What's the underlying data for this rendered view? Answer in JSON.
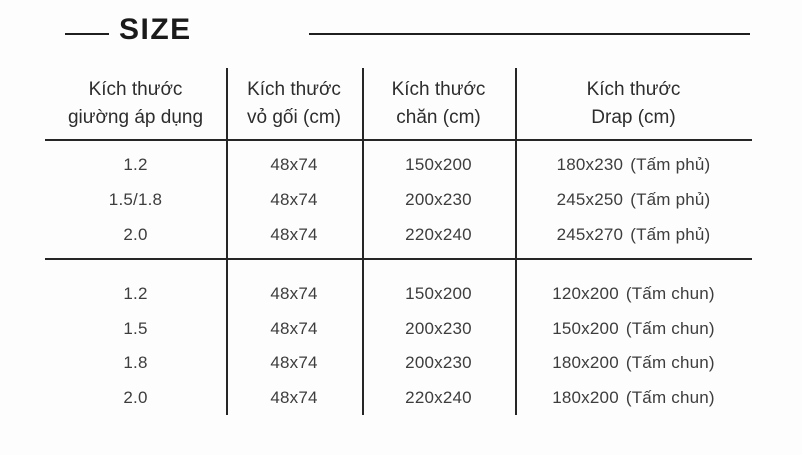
{
  "page": {
    "title": "SIZE"
  },
  "table": {
    "columns": [
      {
        "label_line1": "Kích thước",
        "label_line2": "giường áp dụng"
      },
      {
        "label_line1": "Kích thước",
        "label_line2": "vỏ gối (cm)"
      },
      {
        "label_line1": "Kích thước",
        "label_line2": "chăn (cm)"
      },
      {
        "label_line1": "Kích thước",
        "label_line2": "Drap (cm)"
      }
    ],
    "groups": [
      {
        "rows": [
          [
            "1.2",
            "48x74",
            "150x200",
            "180x230",
            "(Tấm phủ)"
          ],
          [
            "1.5/1.8",
            "48x74",
            "200x230",
            "245x250",
            "(Tấm phủ)"
          ],
          [
            "2.0",
            "48x74",
            "220x240",
            "245x270",
            "(Tấm phủ)"
          ]
        ]
      },
      {
        "rows": [
          [
            "1.2",
            "48x74",
            "150x200",
            "120x200",
            "(Tấm chun)"
          ],
          [
            "1.5",
            "48x74",
            "200x230",
            "150x200",
            "(Tấm chun)"
          ],
          [
            "1.8",
            "48x74",
            "200x230",
            "180x200",
            "(Tấm chun)"
          ],
          [
            "2.0",
            "48x74",
            "220x240",
            "180x200",
            "(Tấm chun)"
          ]
        ]
      }
    ]
  },
  "colors": {
    "text": "#3d3d3d",
    "heading": "#1a1a1a",
    "line": "#262626",
    "background": "#fdfdfd"
  }
}
